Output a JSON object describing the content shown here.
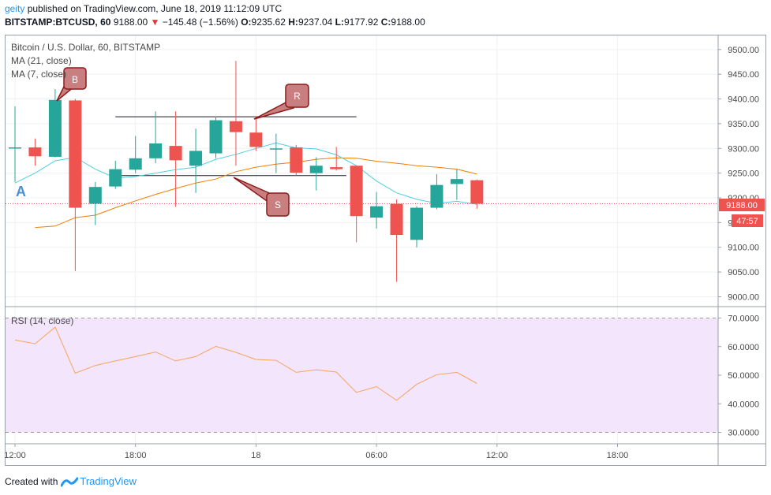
{
  "header": {
    "publisher": "geity",
    "published_text": "published on TradingView.com, June 18, 2019 11:12:09 UTC",
    "symbol": "BITSTAMP:BTCUSD, 60",
    "last": "9188.00",
    "change": "−145.48 (−1.56%)",
    "o_label": "O:",
    "o": "9235.62",
    "h_label": "H:",
    "h": "9237.04",
    "l_label": "L:",
    "l": "9177.92",
    "c_label": "C:",
    "c": "9188.00"
  },
  "legend": {
    "title": "Bitcoin / U.S. Dollar, 60, BITSTAMP",
    "ma21": "MA (21, close)",
    "ma7": "MA (7, close)",
    "rsi": "RSI (14, close)"
  },
  "price_label": "9188.00",
  "countdown_label": "47:57",
  "annotations": {
    "a": "A",
    "b": "B",
    "r": "R",
    "s": "S"
  },
  "footer": {
    "created_with": "Created with",
    "brand": "TradingView"
  },
  "colors": {
    "up": "#26a69a",
    "down": "#ef5350",
    "ma21": "#f57c00",
    "ma7": "#4dd0e1",
    "rsi": "#f4a460",
    "rsi_band": "#f3e5fc",
    "callout": "#c97f7f"
  },
  "chart_data": [
    {
      "type": "candlestick",
      "ylim": [
        8980,
        9530
      ],
      "y_ticks": [
        "9500.00",
        "9450.00",
        "9400.00",
        "9350.00",
        "9300.00",
        "9250.00",
        "9200.00",
        "9150.00",
        "9100.00",
        "9050.00",
        "9000.00"
      ],
      "x_ticks": [
        {
          "label": "12:00",
          "bar": 0
        },
        {
          "label": "18:00",
          "bar": 6
        },
        {
          "label": "18",
          "bar": 12
        },
        {
          "label": "06:00",
          "bar": 18
        },
        {
          "label": "12:00",
          "bar": 24
        },
        {
          "label": "18:00",
          "bar": 30
        }
      ],
      "candles": [
        {
          "o": 9302,
          "h": 9385,
          "l": 9232,
          "c": 9302
        },
        {
          "o": 9302,
          "h": 9320,
          "l": 9265,
          "c": 9284
        },
        {
          "o": 9283,
          "h": 9420,
          "l": 9282,
          "c": 9398
        },
        {
          "o": 9397,
          "h": 9400,
          "l": 9052,
          "c": 9180
        },
        {
          "o": 9188,
          "h": 9232,
          "l": 9145,
          "c": 9222
        },
        {
          "o": 9223,
          "h": 9275,
          "l": 9218,
          "c": 9258
        },
        {
          "o": 9257,
          "h": 9325,
          "l": 9250,
          "c": 9280
        },
        {
          "o": 9280,
          "h": 9375,
          "l": 9270,
          "c": 9310
        },
        {
          "o": 9305,
          "h": 9375,
          "l": 9182,
          "c": 9276
        },
        {
          "o": 9265,
          "h": 9340,
          "l": 9210,
          "c": 9295
        },
        {
          "o": 9290,
          "h": 9365,
          "l": 9280,
          "c": 9357
        },
        {
          "o": 9355,
          "h": 9477,
          "l": 9265,
          "c": 9333
        },
        {
          "o": 9332,
          "h": 9365,
          "l": 9295,
          "c": 9303
        },
        {
          "o": 9299,
          "h": 9330,
          "l": 9250,
          "c": 9300
        },
        {
          "o": 9302,
          "h": 9307,
          "l": 9245,
          "c": 9251
        },
        {
          "o": 9250,
          "h": 9282,
          "l": 9215,
          "c": 9265
        },
        {
          "o": 9262,
          "h": 9303,
          "l": 9255,
          "c": 9258
        },
        {
          "o": 9265,
          "h": 9265,
          "l": 9110,
          "c": 9163
        },
        {
          "o": 9160,
          "h": 9212,
          "l": 9138,
          "c": 9183
        },
        {
          "o": 9188,
          "h": 9197,
          "l": 9030,
          "c": 9125
        },
        {
          "o": 9115,
          "h": 9183,
          "l": 9100,
          "c": 9180
        },
        {
          "o": 9180,
          "h": 9248,
          "l": 9177,
          "c": 9226
        },
        {
          "o": 9228,
          "h": 9258,
          "l": 9196,
          "c": 9238
        },
        {
          "o": 9235.62,
          "h": 9237.04,
          "l": 9177.92,
          "c": 9188
        }
      ],
      "ma21": [
        null,
        9140,
        9143,
        9160,
        9165,
        9180,
        9194,
        9207,
        9219,
        9230,
        9238,
        9253,
        9262,
        9268,
        9272,
        9278,
        9281,
        9280,
        9274,
        9270,
        9265,
        9262,
        9258,
        9248
      ],
      "ma7": [
        9230,
        9250,
        9275,
        9282,
        9258,
        9240,
        9243,
        9250,
        9257,
        9262,
        9278,
        9288,
        9300,
        9311,
        9301,
        9299,
        9287,
        9265,
        9234,
        9210,
        9197,
        9189,
        9193,
        9187
      ],
      "levels": [
        {
          "name": "resistance",
          "y": 9364,
          "from_bar": 5,
          "to_bar": 17
        },
        {
          "name": "support",
          "y": 9245,
          "from_bar": 5,
          "to_bar": 16.5
        }
      ]
    },
    {
      "type": "line",
      "title": "RSI (14, close)",
      "ylim": [
        26,
        74
      ],
      "y_ticks": [
        "70.0000",
        "60.0000",
        "50.0000",
        "40.0000",
        "30.0000"
      ],
      "band": [
        30,
        70
      ],
      "values": [
        62.3,
        61,
        66.8,
        50.7,
        53.4,
        55,
        56.5,
        58.1,
        55,
        56.5,
        60.1,
        58,
        55.5,
        55.2,
        51,
        51.9,
        51.1,
        44,
        46,
        41.2,
        46.8,
        50.2,
        51,
        47.1
      ]
    }
  ]
}
